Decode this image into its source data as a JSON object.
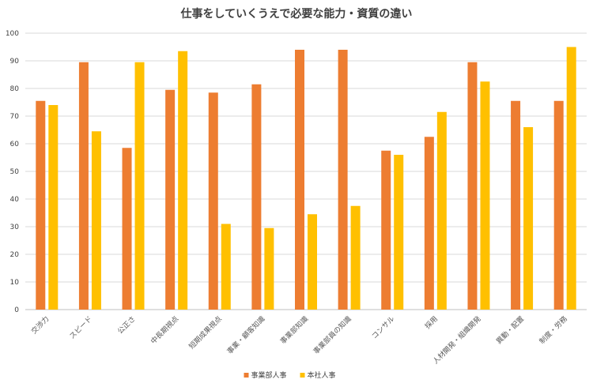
{
  "chart_data": {
    "type": "bar",
    "title": "仕事をしていくうえで必要な能力・資質の違い",
    "categories": [
      "交渉力",
      "スピード",
      "公正さ",
      "中長期視点",
      "短期成果視点",
      "事業・顧客知識",
      "事業部知識",
      "事業部員の知識",
      "コンサル",
      "採用",
      "人材開発・組織開発",
      "異動・配置",
      "制度・労務"
    ],
    "series": [
      {
        "name": "事業部人事",
        "color": "#ED7D31",
        "values": [
          75.5,
          89.5,
          58.5,
          79.5,
          78.5,
          81.5,
          94,
          94,
          57.5,
          62.5,
          89.5,
          75.5,
          75.5
        ]
      },
      {
        "name": "本社人事",
        "color": "#FFC000",
        "values": [
          74,
          64.5,
          89.5,
          93.5,
          31,
          29.5,
          34.5,
          37.5,
          56,
          71.5,
          82.5,
          66,
          95
        ]
      }
    ],
    "ylim": [
      0,
      100
    ],
    "yticks": [
      0,
      10,
      20,
      30,
      40,
      50,
      60,
      70,
      80,
      90,
      100
    ],
    "xlabel": "",
    "ylabel": "",
    "grid": true,
    "legend": "bottom"
  }
}
